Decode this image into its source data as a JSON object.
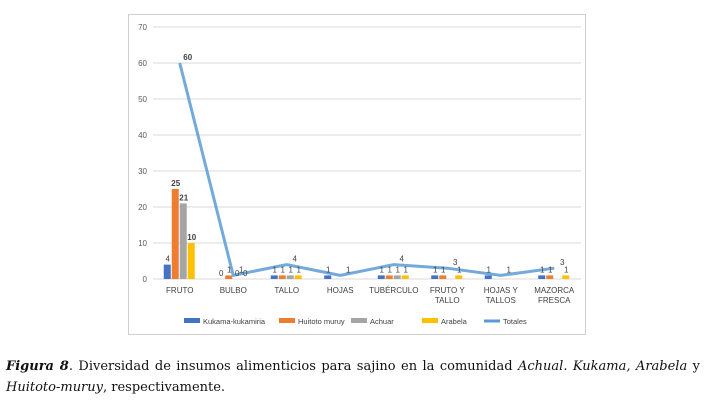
{
  "chart_data": {
    "type": "bar",
    "categories": [
      "FRUTO",
      "BULBO",
      "TALLO",
      "HOJAS",
      "TUBÉRCULO",
      "FRUTO Y\nTALLO",
      "HOJAS Y\nTALLOS",
      "MAZORCA\nFRESCA"
    ],
    "series": [
      {
        "name": "Kukama-kukamiria",
        "color": "#4472c4",
        "values": [
          4,
          0,
          1,
          1,
          1,
          1,
          1,
          1
        ]
      },
      {
        "name": "Huitoto muruy",
        "color": "#ed7d31",
        "values": [
          25,
          1,
          1,
          0,
          1,
          1,
          0,
          1
        ]
      },
      {
        "name": "Achuar",
        "color": "#a5a5a5",
        "values": [
          21,
          0,
          1,
          0,
          1,
          0,
          0,
          0
        ]
      },
      {
        "name": "Arabela",
        "color": "#ffc000",
        "values": [
          10,
          0,
          1,
          0,
          1,
          1,
          0,
          1
        ]
      }
    ],
    "line_series": {
      "name": "Totales",
      "color": "#5b9bd5",
      "values": [
        60,
        1,
        4,
        1,
        4,
        3,
        1,
        3
      ]
    },
    "value_labels": [
      [
        "4",
        "25",
        "21",
        "10",
        "60"
      ],
      [
        "0",
        "1",
        "0",
        "0",
        "1"
      ],
      [
        "1",
        "1",
        "1",
        "1",
        "4"
      ],
      [
        "1",
        "",
        "",
        "",
        "1"
      ],
      [
        "1",
        "1",
        "1",
        "1",
        "4"
      ],
      [
        "1",
        "1",
        "",
        "1",
        "3"
      ],
      [
        "1",
        "",
        "",
        "",
        "1"
      ],
      [
        "1",
        "1",
        "",
        "1",
        "3"
      ]
    ],
    "ylim": [
      0,
      70
    ],
    "yticks": [
      "0",
      "10",
      "20",
      "30",
      "40",
      "50",
      "60",
      "70"
    ],
    "grid": true,
    "legend_position": "bottom"
  },
  "caption": {
    "label": "Figura 8",
    "text_1": ". Diversidad de insumos alimenticios para sajino en la comunidad ",
    "italic_1": "Achual. Kukama, Arabela",
    "text_2": " y ",
    "italic_2": "Huitoto-muruy",
    "text_3": ", respectivamente."
  }
}
